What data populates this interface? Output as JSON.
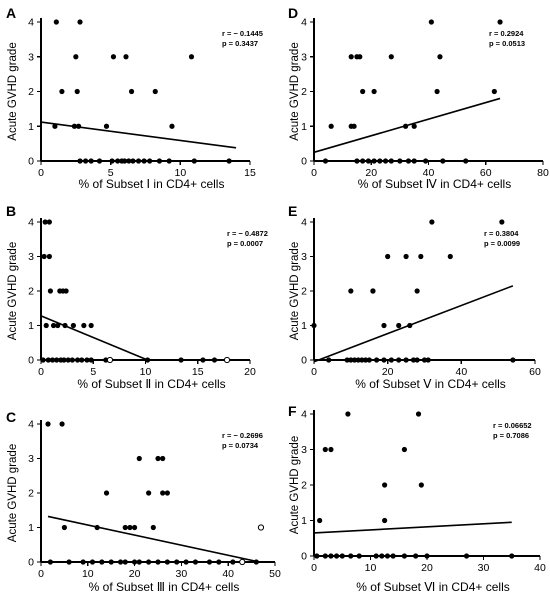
{
  "chart_data": [
    {
      "type": "scatter",
      "label": "A",
      "xlabel": "% of Subset Ⅰ in CD4+ cells",
      "ylabel": "Acute GVHD grade",
      "xlim": [
        0,
        15
      ],
      "ylim": [
        0,
        4
      ],
      "xticks": [
        0,
        5,
        10,
        15
      ],
      "yticks": [
        0,
        1,
        2,
        3,
        4
      ],
      "stats": [
        "r = − 0.1445",
        "p = 0.3437"
      ],
      "fit": [
        [
          0,
          1.12
        ],
        [
          14,
          0.38
        ]
      ],
      "points": [
        [
          1.1,
          4
        ],
        [
          2.8,
          4
        ],
        [
          1.5,
          2
        ],
        [
          2.5,
          3
        ],
        [
          5.2,
          3
        ],
        [
          6.1,
          3
        ],
        [
          2.6,
          2
        ],
        [
          6.5,
          2
        ],
        [
          8.2,
          2
        ],
        [
          10.8,
          3
        ],
        [
          1.0,
          1
        ],
        [
          2.4,
          1
        ],
        [
          2.7,
          1
        ],
        [
          4.7,
          1
        ],
        [
          9.4,
          1
        ],
        [
          2.8,
          0
        ],
        [
          3.2,
          0
        ],
        [
          3.6,
          0
        ],
        [
          4.2,
          0
        ],
        [
          5.1,
          0
        ],
        [
          5.5,
          0
        ],
        [
          5.8,
          0
        ],
        [
          6.0,
          0
        ],
        [
          6.3,
          0
        ],
        [
          6.6,
          0
        ],
        [
          7.0,
          0
        ],
        [
          7.4,
          0
        ],
        [
          7.8,
          0
        ],
        [
          8.5,
          0
        ],
        [
          9.2,
          0
        ],
        [
          11.0,
          0
        ],
        [
          13.5,
          0
        ]
      ],
      "open_points": []
    },
    {
      "type": "scatter",
      "label": "D",
      "xlabel": "% of Subset Ⅳ in CD4+ cells",
      "ylabel": "Acute GVHD grade",
      "xlim": [
        0,
        80
      ],
      "ylim": [
        0,
        4
      ],
      "xticks": [
        0,
        20,
        40,
        60,
        80
      ],
      "yticks": [
        0,
        1,
        2,
        3,
        4
      ],
      "stats": [
        "r = 0.2924",
        "p = 0.0513"
      ],
      "fit": [
        [
          0,
          0.25
        ],
        [
          65,
          1.8
        ]
      ],
      "points": [
        [
          41,
          4
        ],
        [
          65,
          4
        ],
        [
          13,
          3
        ],
        [
          15,
          3
        ],
        [
          16,
          3
        ],
        [
          27,
          3
        ],
        [
          44,
          3
        ],
        [
          17,
          2
        ],
        [
          21,
          2
        ],
        [
          43,
          2
        ],
        [
          63,
          2
        ],
        [
          6,
          1
        ],
        [
          13,
          1
        ],
        [
          14,
          1
        ],
        [
          32,
          1
        ],
        [
          35,
          1
        ],
        [
          4,
          0
        ],
        [
          15,
          0
        ],
        [
          17,
          0
        ],
        [
          19,
          0
        ],
        [
          21,
          0
        ],
        [
          23,
          0
        ],
        [
          25,
          0
        ],
        [
          27,
          0
        ],
        [
          30,
          0
        ],
        [
          33,
          0
        ],
        [
          35,
          0
        ],
        [
          39,
          0
        ],
        [
          45,
          0
        ],
        [
          53,
          0
        ]
      ],
      "open_points": []
    },
    {
      "type": "scatter",
      "label": "B",
      "xlabel": "% of Subset Ⅱ in CD4+ cells",
      "ylabel": "Acute GVHD grade",
      "xlim": [
        0,
        20
      ],
      "ylim": [
        0,
        4
      ],
      "xticks": [
        0,
        5,
        10,
        15,
        20
      ],
      "yticks": [
        0,
        1,
        2,
        3,
        4
      ],
      "stats": [
        "r = − 0.4872",
        "p = 0.0007"
      ],
      "fit": [
        [
          0,
          1.28
        ],
        [
          10.2,
          0
        ]
      ],
      "points": [
        [
          0.4,
          4
        ],
        [
          0.8,
          4
        ],
        [
          0.3,
          3
        ],
        [
          0.8,
          3
        ],
        [
          0.9,
          2
        ],
        [
          1.8,
          2
        ],
        [
          2.1,
          2
        ],
        [
          2.4,
          2
        ],
        [
          0.5,
          1
        ],
        [
          1.2,
          1
        ],
        [
          1.6,
          1
        ],
        [
          2.3,
          1
        ],
        [
          3.1,
          1
        ],
        [
          4.1,
          1
        ],
        [
          4.8,
          1
        ],
        [
          0.2,
          0
        ],
        [
          0.7,
          0
        ],
        [
          1.1,
          0
        ],
        [
          1.5,
          0
        ],
        [
          1.9,
          0
        ],
        [
          2.2,
          0
        ],
        [
          2.6,
          0
        ],
        [
          3.0,
          0
        ],
        [
          3.5,
          0
        ],
        [
          3.9,
          0
        ],
        [
          4.4,
          0
        ],
        [
          4.8,
          0
        ],
        [
          6.2,
          0
        ],
        [
          10.2,
          0
        ],
        [
          13.4,
          0
        ],
        [
          15.5,
          0
        ],
        [
          16.6,
          0
        ]
      ],
      "open_points": [
        [
          6.6,
          0
        ],
        [
          17.8,
          0
        ]
      ]
    },
    {
      "type": "scatter",
      "label": "E",
      "xlabel": "% of Subset Ⅴ in CD4+ cells",
      "ylabel": "Acute GVHD grade",
      "xlim": [
        0,
        60
      ],
      "ylim": [
        0,
        4
      ],
      "xticks": [
        0,
        20,
        40,
        60
      ],
      "yticks": [
        0,
        1,
        2,
        3,
        4
      ],
      "stats": [
        "r = 0.3804",
        "p = 0.0099"
      ],
      "fit": [
        [
          0,
          -0.05
        ],
        [
          54,
          2.15
        ]
      ],
      "points": [
        [
          32,
          4
        ],
        [
          51,
          4
        ],
        [
          20,
          3
        ],
        [
          25,
          3
        ],
        [
          29,
          3
        ],
        [
          37,
          3
        ],
        [
          10,
          2
        ],
        [
          16,
          2
        ],
        [
          16,
          2
        ],
        [
          28,
          2
        ],
        [
          19,
          1
        ],
        [
          23,
          1
        ],
        [
          26,
          1
        ],
        [
          0,
          1
        ],
        [
          4,
          0
        ],
        [
          9,
          0
        ],
        [
          10,
          0
        ],
        [
          11,
          0
        ],
        [
          12,
          0
        ],
        [
          13,
          0
        ],
        [
          14,
          0
        ],
        [
          15,
          0
        ],
        [
          17,
          0
        ],
        [
          19,
          0
        ],
        [
          21,
          0
        ],
        [
          23,
          0
        ],
        [
          25,
          0
        ],
        [
          27,
          0
        ],
        [
          28,
          0
        ],
        [
          30,
          0
        ],
        [
          31,
          0
        ],
        [
          54,
          0
        ]
      ],
      "open_points": []
    },
    {
      "type": "scatter",
      "label": "C",
      "xlabel": "% of Subset Ⅲ in CD4+ cells",
      "ylabel": "Acute GVHD grade",
      "xlim": [
        0,
        50
      ],
      "ylim": [
        0,
        4
      ],
      "xticks": [
        0,
        10,
        20,
        30,
        40,
        50
      ],
      "yticks": [
        0,
        1,
        2,
        3,
        4
      ],
      "stats": [
        "r = − 0.2696",
        "p = 0.0734"
      ],
      "fit": [
        [
          1.5,
          1.32
        ],
        [
          46,
          0.02
        ]
      ],
      "points": [
        [
          1.5,
          4
        ],
        [
          4.5,
          4
        ],
        [
          21,
          3
        ],
        [
          25,
          3
        ],
        [
          26,
          3
        ],
        [
          14,
          2
        ],
        [
          23,
          2
        ],
        [
          26,
          2
        ],
        [
          27,
          2
        ],
        [
          5,
          1
        ],
        [
          12,
          1
        ],
        [
          18,
          1
        ],
        [
          19,
          1
        ],
        [
          20,
          1
        ],
        [
          24,
          1
        ],
        [
          2,
          0
        ],
        [
          6,
          0
        ],
        [
          9,
          0
        ],
        [
          11,
          0
        ],
        [
          13,
          0
        ],
        [
          15,
          0
        ],
        [
          17,
          0
        ],
        [
          18,
          0
        ],
        [
          20,
          0
        ],
        [
          21,
          0
        ],
        [
          23,
          0
        ],
        [
          25,
          0
        ],
        [
          27,
          0
        ],
        [
          29,
          0
        ],
        [
          31,
          0
        ],
        [
          33,
          0
        ],
        [
          36,
          0
        ],
        [
          38,
          0
        ],
        [
          41,
          0
        ],
        [
          46,
          0
        ]
      ],
      "open_points": [
        [
          47,
          1
        ],
        [
          43,
          0
        ]
      ]
    },
    {
      "type": "scatter",
      "label": "F",
      "xlabel": "% of Subset Ⅵ in CD4+ cells",
      "ylabel": "Acute GVHD grade",
      "xlim": [
        0,
        40
      ],
      "ylim": [
        0,
        4
      ],
      "xticks": [
        0,
        10,
        20,
        30,
        40
      ],
      "yticks": [
        0,
        1,
        2,
        3,
        4
      ],
      "stats": [
        "r = 0.06652",
        "p = 0.7086"
      ],
      "fit": [
        [
          0,
          0.65
        ],
        [
          35,
          0.95
        ]
      ],
      "points": [
        [
          6,
          4
        ],
        [
          18.5,
          4
        ],
        [
          2,
          3
        ],
        [
          3,
          3
        ],
        [
          16,
          3
        ],
        [
          12.5,
          2
        ],
        [
          19,
          2
        ],
        [
          1,
          1
        ],
        [
          12.5,
          1
        ],
        [
          0.5,
          0
        ],
        [
          2,
          0
        ],
        [
          3,
          0
        ],
        [
          4,
          0
        ],
        [
          5,
          0
        ],
        [
          6.5,
          0
        ],
        [
          8,
          0
        ],
        [
          11,
          0
        ],
        [
          12,
          0
        ],
        [
          13,
          0
        ],
        [
          14,
          0
        ],
        [
          16,
          0
        ],
        [
          18,
          0
        ],
        [
          20,
          0
        ],
        [
          27,
          0
        ],
        [
          35,
          0
        ]
      ],
      "open_points": []
    }
  ]
}
